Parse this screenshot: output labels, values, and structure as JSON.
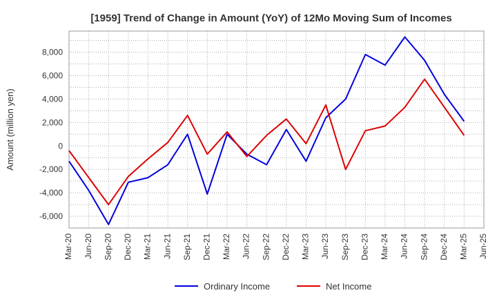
{
  "chart_data": {
    "type": "line",
    "title": "[1959]  Trend of Change in Amount (YoY) of 12Mo Moving Sum of Incomes",
    "xlabel": "",
    "ylabel": "Amount (million yen)",
    "ylim": [
      -7000,
      9800
    ],
    "yticks": [
      -6000,
      -4000,
      -2000,
      0,
      2000,
      4000,
      6000,
      8000
    ],
    "ytick_labels": [
      "-6,000",
      "-4,000",
      "-2,000",
      "0",
      "2,000",
      "4,000",
      "6,000",
      "8,000"
    ],
    "grid": true,
    "legend": "bottom",
    "categories": [
      "Mar-20",
      "Jun-20",
      "Sep-20",
      "Dec-20",
      "Mar-21",
      "Jun-21",
      "Sep-21",
      "Dec-21",
      "Mar-22",
      "Jun-22",
      "Sep-22",
      "Dec-22",
      "Mar-23",
      "Jun-23",
      "Sep-23",
      "Dec-23",
      "Mar-24",
      "Jun-24",
      "Sep-24",
      "Dec-24",
      "Mar-25",
      "Jun-25"
    ],
    "series": [
      {
        "name": "Ordinary Income",
        "color": "#0000dd",
        "values": [
          -1300,
          -3800,
          -6700,
          -3100,
          -2700,
          -1600,
          1000,
          -4100,
          1000,
          -700,
          -1600,
          1400,
          -1300,
          2400,
          4000,
          7800,
          6900,
          9300,
          7300,
          4400,
          2100,
          null
        ]
      },
      {
        "name": "Net Income",
        "color": "#dd0000",
        "values": [
          -400,
          -2700,
          -5000,
          -2600,
          -1100,
          300,
          2600,
          -700,
          1200,
          -900,
          900,
          2300,
          200,
          3500,
          -2000,
          1300,
          1700,
          3300,
          5700,
          3300,
          900,
          null
        ]
      }
    ]
  }
}
